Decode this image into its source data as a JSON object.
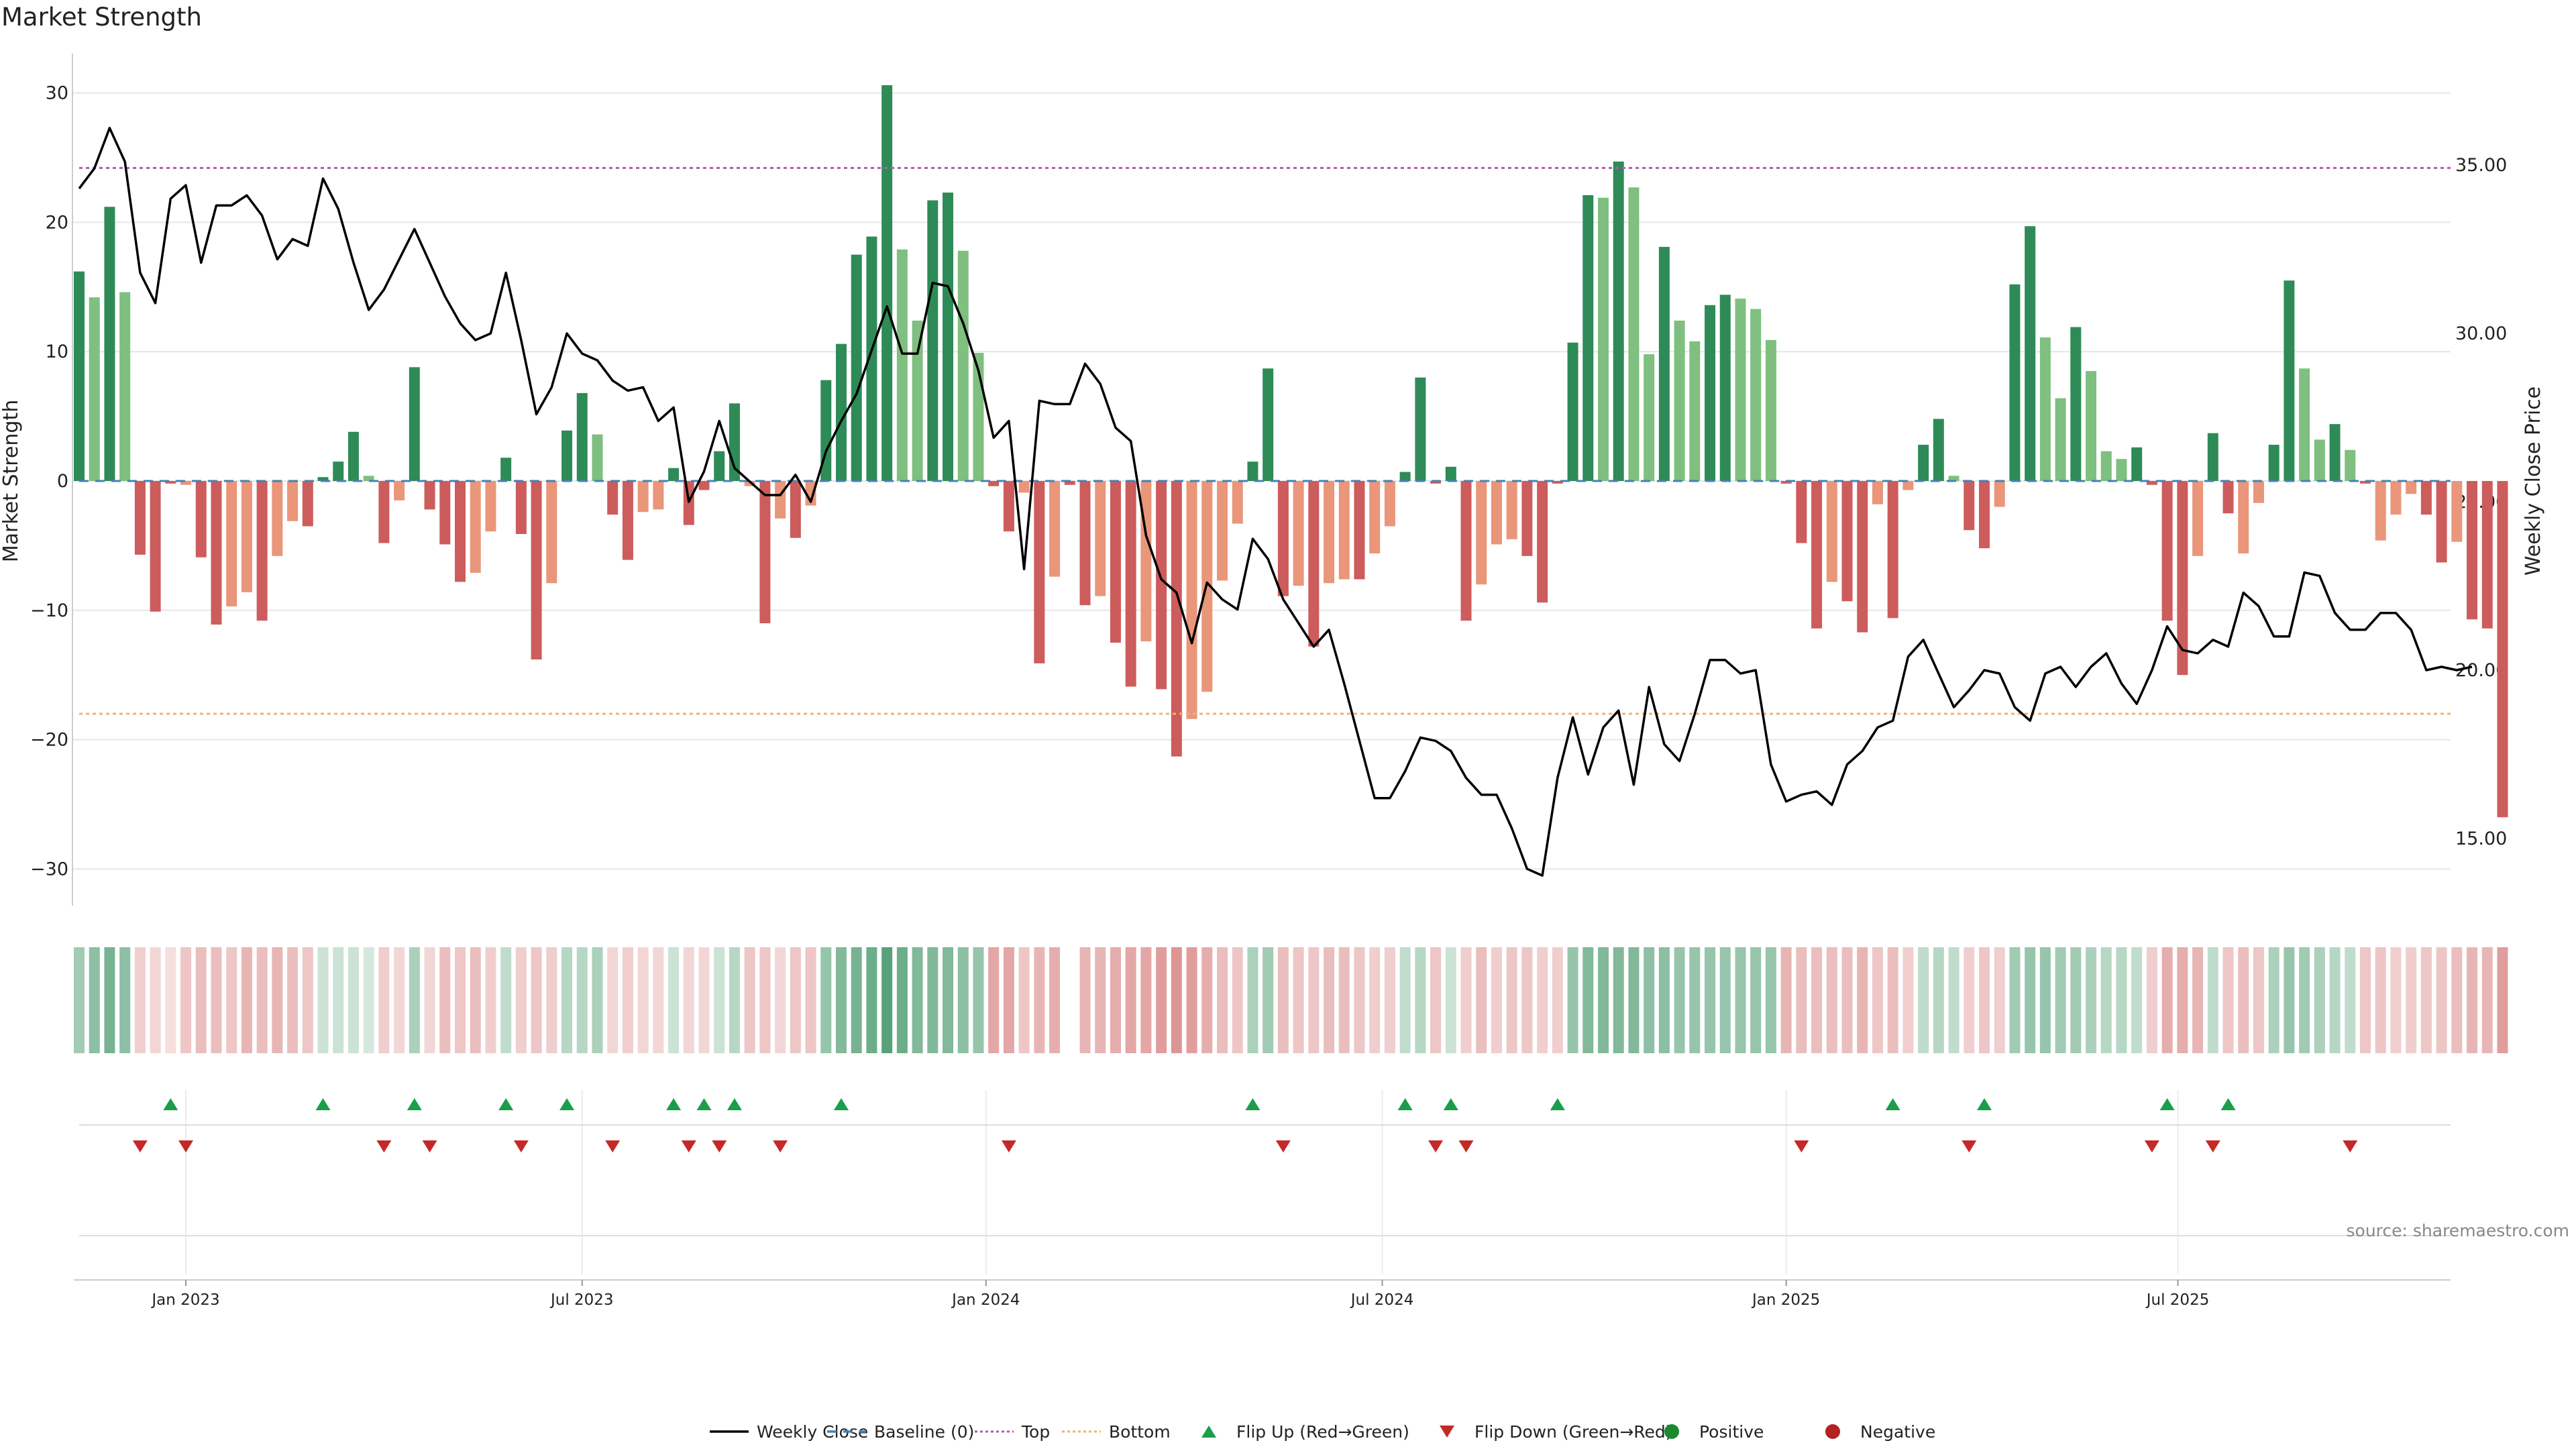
{
  "title": "Market Strength",
  "source": "source: sharemaestro.com",
  "chart_data": {
    "type": "bar",
    "title": "Market Strength",
    "ylabel": "Market Strength",
    "y2label": "Weekly Close Price",
    "ylim": [
      -33,
      31.5
    ],
    "y2lim": [
      13,
      38
    ],
    "y_ticks": [
      30,
      20,
      10,
      0,
      -10,
      -20,
      -30
    ],
    "y_tick_labels": [
      "30",
      "20",
      "10",
      "0",
      "−10",
      "−20",
      "−30"
    ],
    "y2_ticks": [
      35,
      30,
      25,
      20,
      15
    ],
    "y2_tick_labels": [
      "35.00",
      "30.00",
      "25.00",
      "20.00",
      "15.00"
    ],
    "x_ticks": [
      "Jan 2023",
      "Jul 2023",
      "Jan 2024",
      "Jul 2024",
      "Jan 2025",
      "Jul 2025"
    ],
    "x_tick_weeks": [
      7,
      33,
      59.5,
      85.5,
      112,
      137.7
    ],
    "grid": true,
    "legend_position": "bottom-center",
    "reference_lines": {
      "baseline": 0,
      "top": 24.2,
      "bottom": -18
    },
    "colors": {
      "pos_strong": "#2e8b57",
      "pos_light": "#7fbf7f",
      "neg_strong": "#cd5c5c",
      "neg_light": "#e9967a",
      "close": "#000000",
      "baseline": "#4682b4",
      "top": "#b05db0",
      "bottom": "#f0b070",
      "flip_up": "#1a9e4a",
      "flip_down": "#c62828",
      "positive": "#1a8a2e",
      "negative": "#b22222"
    },
    "series": [
      {
        "name": "Market Strength",
        "values": [
          16.2,
          14.2,
          21.2,
          14.6,
          -5.7,
          -10.1,
          -0.2,
          -0.3,
          -5.9,
          -11.1,
          -9.7,
          -8.6,
          -10.8,
          -5.8,
          -3.1,
          -3.5,
          0.3,
          1.5,
          3.8,
          0.4,
          -4.8,
          -1.5,
          8.8,
          -2.2,
          -4.9,
          -7.8,
          -7.1,
          -3.9,
          1.8,
          -4.1,
          -13.8,
          -7.9,
          3.9,
          6.8,
          3.6,
          -2.6,
          -6.1,
          -2.4,
          -2.2,
          1.0,
          -3.4,
          -0.7,
          2.3,
          6.0,
          -0.4,
          -11.0,
          -2.9,
          -4.4,
          -1.9,
          7.8,
          10.6,
          17.5,
          18.9,
          30.6,
          17.9,
          12.4,
          21.7,
          22.3,
          17.8,
          9.9,
          -0.4,
          -3.9,
          -0.9,
          -14.1,
          -7.4,
          -0.3,
          -9.6,
          -8.9,
          -12.5,
          -15.9,
          -12.4,
          -16.1,
          -21.3,
          -18.4,
          -16.3,
          -7.7,
          -3.3,
          1.5,
          8.7,
          -8.9,
          -8.1,
          -12.8,
          -7.9,
          -7.6,
          -7.6,
          -5.6,
          -3.5,
          0.7,
          8.0,
          -0.2,
          1.1,
          -10.8,
          -8.0,
          -4.9,
          -4.5,
          -5.8,
          -9.4,
          -0.2,
          10.7,
          22.1,
          21.9,
          24.7,
          22.7,
          9.8,
          18.1,
          12.4,
          10.8,
          13.6,
          14.4,
          14.1,
          13.3,
          10.9,
          -0.2,
          -4.8,
          -11.4,
          -7.8,
          -9.3,
          -11.7,
          -1.8,
          -10.6,
          -0.7,
          2.8,
          4.8,
          0.4,
          -3.8,
          -5.2,
          -2.0,
          15.2,
          19.7,
          11.1,
          6.4,
          11.9,
          8.5,
          2.3,
          1.7,
          2.6,
          -0.3,
          -10.8,
          -15.0,
          -5.8,
          3.7,
          -2.5,
          -5.6,
          -1.7,
          2.8,
          15.5,
          8.7,
          3.2,
          4.4,
          2.4,
          -0.2,
          -4.6,
          -2.6,
          -1.0,
          -2.6,
          -6.3,
          -4.7,
          -10.7,
          -11.4,
          -26.0
        ],
        "shade": [
          "s",
          "l",
          "s",
          "l",
          "s",
          "s",
          "s",
          "l",
          "s",
          "s",
          "l",
          "l",
          "s",
          "l",
          "l",
          "s",
          "s",
          "s",
          "s",
          "l",
          "s",
          "l",
          "s",
          "s",
          "s",
          "s",
          "l",
          "l",
          "s",
          "s",
          "s",
          "l",
          "s",
          "s",
          "l",
          "s",
          "s",
          "l",
          "l",
          "s",
          "s",
          "s",
          "s",
          "s",
          "l",
          "s",
          "l",
          "s",
          "l",
          "s",
          "s",
          "s",
          "s",
          "s",
          "l",
          "l",
          "s",
          "s",
          "l",
          "l",
          "s",
          "s",
          "l",
          "s",
          "l",
          "s",
          "s",
          "l",
          "s",
          "s",
          "l",
          "s",
          "s",
          "l",
          "l",
          "l",
          "l",
          "s",
          "s",
          "s",
          "l",
          "s",
          "l",
          "l",
          "s",
          "l",
          "l",
          "s",
          "s",
          "s",
          "s",
          "s",
          "l",
          "l",
          "l",
          "s",
          "s",
          "s",
          "s",
          "s",
          "l",
          "s",
          "l",
          "l",
          "s",
          "l",
          "l",
          "s",
          "s",
          "l",
          "l",
          "l",
          "s",
          "s",
          "s",
          "l",
          "s",
          "s",
          "l",
          "s",
          "l",
          "s",
          "s",
          "l",
          "s",
          "s",
          "l",
          "s",
          "s",
          "l",
          "l",
          "s",
          "l",
          "l",
          "l",
          "s",
          "s",
          "s",
          "s",
          "l",
          "s",
          "s",
          "l",
          "l",
          "s",
          "s",
          "l",
          "l",
          "s",
          "l",
          "s",
          "l",
          "l",
          "l",
          "s",
          "s",
          "l",
          "s",
          "s"
        ]
      },
      {
        "name": "Weekly Close",
        "axis": "right",
        "values": [
          34.3,
          34.9,
          36.1,
          35.1,
          31.8,
          30.9,
          34.0,
          34.4,
          32.1,
          33.8,
          33.8,
          34.1,
          33.5,
          32.2,
          32.8,
          32.6,
          34.6,
          33.7,
          32.1,
          30.7,
          31.3,
          32.2,
          33.1,
          32.1,
          31.1,
          30.3,
          29.8,
          30.0,
          31.8,
          29.8,
          27.6,
          28.4,
          30.0,
          29.4,
          29.2,
          28.6,
          28.3,
          28.4,
          27.4,
          27.8,
          25.0,
          25.9,
          27.4,
          26.0,
          25.6,
          25.2,
          25.2,
          25.8,
          25.0,
          26.5,
          27.4,
          28.2,
          29.5,
          30.8,
          29.4,
          29.4,
          31.5,
          31.4,
          30.3,
          28.9,
          26.9,
          27.4,
          23.0,
          28.0,
          27.9,
          27.9,
          29.1,
          28.5,
          27.2,
          26.8,
          24.0,
          22.7,
          22.3,
          20.8,
          22.6,
          22.1,
          21.8,
          23.9,
          23.3,
          22.1,
          21.4,
          20.7,
          21.2,
          19.6,
          17.9,
          16.2,
          16.2,
          17.0,
          18.0,
          17.9,
          17.6,
          16.8,
          16.3,
          16.3,
          15.3,
          14.1,
          13.9,
          16.8,
          18.6,
          16.9,
          18.3,
          18.8,
          16.6,
          19.5,
          17.8,
          17.3,
          18.7,
          20.3,
          20.3,
          19.9,
          20.0,
          17.2,
          16.1,
          16.3,
          16.4,
          16.0,
          17.2,
          17.6,
          18.3,
          18.5,
          20.4,
          20.9,
          19.9,
          18.9,
          19.4,
          20.0,
          19.9,
          18.9,
          18.5,
          19.9,
          20.1,
          19.5,
          20.1,
          20.5,
          19.6,
          19.0,
          20.0,
          21.3,
          20.6,
          20.5,
          20.9,
          20.7,
          22.3,
          21.9,
          21.0,
          21.0,
          22.9,
          22.8,
          21.7,
          21.2,
          21.2,
          21.7,
          21.7,
          21.2,
          20.0,
          20.1,
          20.0,
          20.1
        ]
      }
    ],
    "heat_strip": [
      0.45,
      0.55,
      0.65,
      0.55,
      0.3,
      0.25,
      0.2,
      0.35,
      0.4,
      0.4,
      0.35,
      0.45,
      0.4,
      0.45,
      0.4,
      0.35,
      0.25,
      0.25,
      0.25,
      0.2,
      0.3,
      0.25,
      0.4,
      0.25,
      0.4,
      0.35,
      0.4,
      0.3,
      0.3,
      0.3,
      0.35,
      0.3,
      0.35,
      0.35,
      0.4,
      0.25,
      0.3,
      0.25,
      0.25,
      0.25,
      0.25,
      0.25,
      0.25,
      0.35,
      0.35,
      0.35,
      0.25,
      0.35,
      0.35,
      0.5,
      0.6,
      0.65,
      0.7,
      0.8,
      0.7,
      0.6,
      0.6,
      0.6,
      0.55,
      0.5,
      0.55,
      0.55,
      0.35,
      0.45,
      0.5,
      0.0,
      0.45,
      0.45,
      0.5,
      0.55,
      0.55,
      0.6,
      0.65,
      0.6,
      0.5,
      0.4,
      0.35,
      0.4,
      0.45,
      0.4,
      0.35,
      0.35,
      0.4,
      0.4,
      0.35,
      0.3,
      0.3,
      0.3,
      0.35,
      0.35,
      0.25,
      0.3,
      0.4,
      0.3,
      0.35,
      0.35,
      0.3,
      0.3,
      0.5,
      0.6,
      0.6,
      0.6,
      0.6,
      0.55,
      0.55,
      0.5,
      0.5,
      0.5,
      0.5,
      0.5,
      0.5,
      0.5,
      0.45,
      0.4,
      0.4,
      0.4,
      0.4,
      0.45,
      0.35,
      0.4,
      0.3,
      0.3,
      0.35,
      0.3,
      0.3,
      0.35,
      0.3,
      0.45,
      0.5,
      0.5,
      0.45,
      0.45,
      0.4,
      0.35,
      0.35,
      0.3,
      0.3,
      0.5,
      0.5,
      0.45,
      0.3,
      0.35,
      0.4,
      0.35,
      0.4,
      0.5,
      0.45,
      0.4,
      0.35,
      0.3,
      0.35,
      0.35,
      0.3,
      0.3,
      0.35,
      0.35,
      0.4,
      0.45,
      0.45,
      0.6
    ],
    "flip_up_weeks": [
      6,
      16,
      22,
      28,
      32,
      39,
      41,
      43,
      50,
      77,
      87,
      90,
      97,
      119,
      125,
      137,
      141
    ],
    "flip_down_weeks": [
      4,
      7,
      20,
      23,
      29,
      35,
      40,
      42,
      46,
      61,
      79,
      89,
      91,
      113,
      124,
      136,
      140,
      149
    ],
    "legend": [
      {
        "label": "Weekly Close",
        "symbol": "line",
        "color": "#000000"
      },
      {
        "label": "Baseline (0)",
        "symbol": "dash",
        "color": "#4682b4"
      },
      {
        "label": "Top",
        "symbol": "dot",
        "color": "#b05db0"
      },
      {
        "label": "Bottom",
        "symbol": "dot",
        "color": "#f0b070"
      },
      {
        "label": "Flip Up (Red→Green)",
        "symbol": "tri-up",
        "color": "#1a9e4a"
      },
      {
        "label": "Flip Down (Green→Red)",
        "symbol": "tri-down",
        "color": "#c62828"
      },
      {
        "label": "Positive",
        "symbol": "circle",
        "color": "#1a8a2e"
      },
      {
        "label": "Negative",
        "symbol": "circle",
        "color": "#b22222"
      }
    ]
  }
}
